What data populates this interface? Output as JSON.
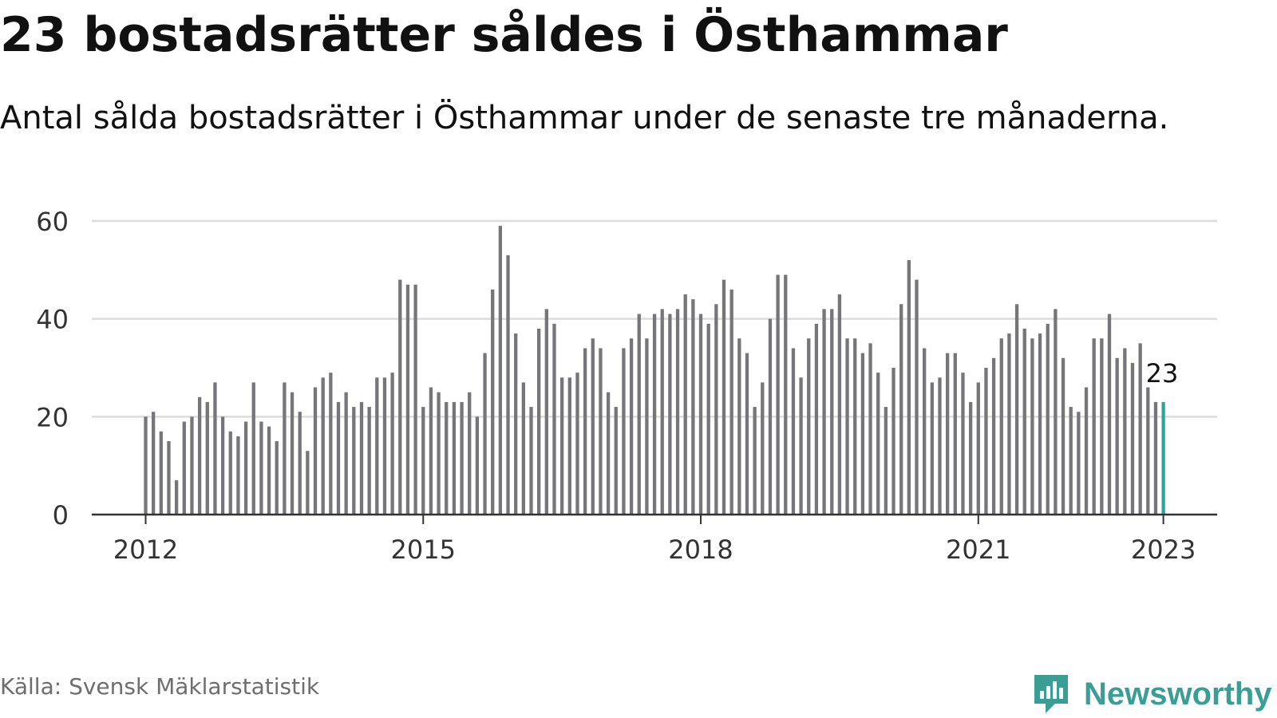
{
  "title": "23 bostadsrätter såldes i Östhammar",
  "subtitle": "Antal sålda bostadsrätter i Östhammar under de senaste tre månaderna.",
  "source": "Källa: Svensk Mäklarstatistik",
  "brand": {
    "name": "Newsworthy",
    "icon": "newsworthy-logo-icon",
    "color": "#3a9e95"
  },
  "colors": {
    "bar": "#76767a",
    "highlight": "#2aa79b",
    "grid": "#dddddd",
    "axis": "#333333"
  },
  "chart_data": {
    "type": "bar",
    "x_start": "2012-01",
    "x_step": "1 month",
    "values": [
      20,
      21,
      17,
      15,
      7,
      19,
      20,
      24,
      23,
      27,
      20,
      17,
      16,
      19,
      27,
      19,
      18,
      15,
      27,
      25,
      21,
      13,
      26,
      28,
      29,
      23,
      25,
      22,
      23,
      22,
      28,
      28,
      29,
      48,
      47,
      47,
      22,
      26,
      25,
      23,
      23,
      23,
      25,
      20,
      33,
      46,
      59,
      53,
      37,
      27,
      22,
      38,
      42,
      39,
      28,
      28,
      29,
      34,
      36,
      34,
      25,
      22,
      34,
      36,
      41,
      36,
      41,
      42,
      41,
      42,
      45,
      44,
      41,
      39,
      43,
      48,
      46,
      36,
      33,
      22,
      27,
      40,
      49,
      49,
      34,
      28,
      36,
      39,
      42,
      42,
      45,
      36,
      36,
      33,
      35,
      29,
      22,
      30,
      43,
      52,
      48,
      34,
      27,
      28,
      33,
      33,
      29,
      23,
      27,
      30,
      32,
      36,
      37,
      43,
      38,
      36,
      37,
      39,
      42,
      32,
      22,
      21,
      26,
      36,
      36,
      41,
      32,
      34,
      31,
      35,
      26,
      23,
      23
    ],
    "highlight_last": true,
    "last_label": "23",
    "x_ticks": [
      "2012",
      "2015",
      "2018",
      "2021",
      "2023"
    ],
    "y_ticks": [
      0,
      20,
      40,
      60
    ],
    "ylim": [
      0,
      60
    ],
    "grid": true,
    "xlabel": "",
    "ylabel": ""
  }
}
